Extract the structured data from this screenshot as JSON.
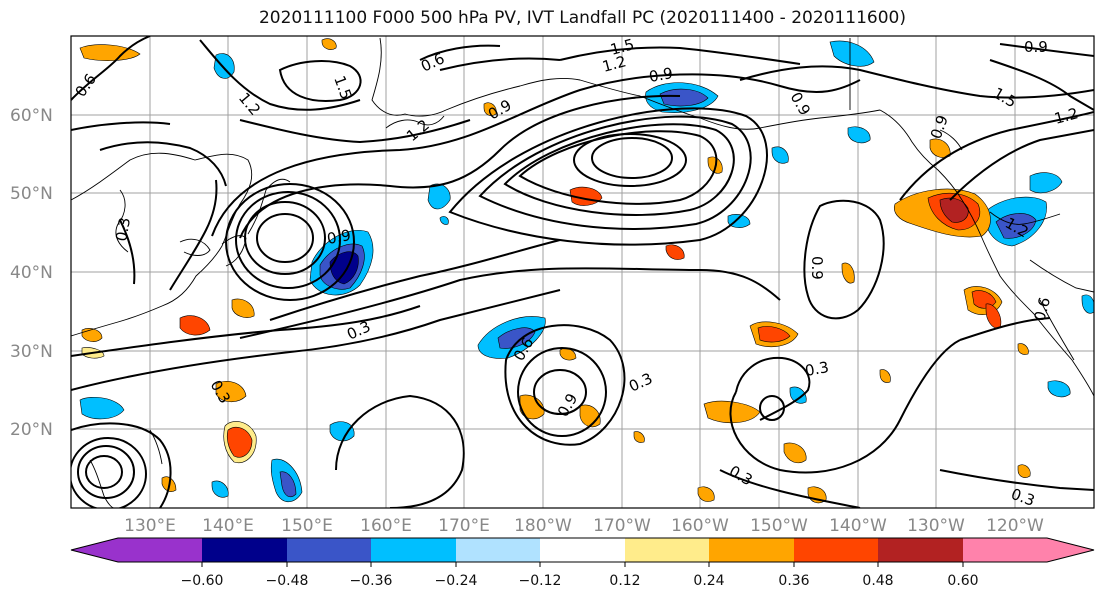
{
  "title": "2020111100 F000 500 hPa PV, IVT Landfall PC (2020111400 - 2020111600)",
  "map": {
    "lat_ticks": [
      "60°N",
      "50°N",
      "40°N",
      "30°N",
      "20°N"
    ],
    "lon_ticks": [
      "130°E",
      "140°E",
      "150°E",
      "160°E",
      "170°E",
      "180°W",
      "170°W",
      "160°W",
      "150°W",
      "140°W",
      "130°W",
      "120°W"
    ],
    "contour_labels": [
      {
        "text": "0.6",
        "name": "pv-label-06-nw"
      },
      {
        "text": "1.2",
        "name": "pv-label-12-west"
      },
      {
        "text": "1.5",
        "name": "pv-label-15-west"
      },
      {
        "text": "0.6",
        "name": "pv-label-06-north"
      },
      {
        "text": "1.5",
        "name": "pv-label-15-north"
      },
      {
        "text": "1.2",
        "name": "pv-label-12-north"
      },
      {
        "text": "0.9",
        "name": "pv-label-09-north"
      },
      {
        "text": "1.2",
        "name": "pv-label-12-central"
      },
      {
        "text": "0.9",
        "name": "pv-label-09-central"
      },
      {
        "text": "0.9",
        "name": "pv-label-09-ne"
      },
      {
        "text": "0.9",
        "name": "pv-label-09-east"
      },
      {
        "text": "1.5",
        "name": "pv-label-15-east"
      },
      {
        "text": "1.2",
        "name": "pv-label-12-east"
      },
      {
        "text": "0.9",
        "name": "pv-label-09-gulf"
      },
      {
        "text": "0.3",
        "name": "pv-label-03-west"
      },
      {
        "text": "0.9",
        "name": "pv-label-09-low"
      },
      {
        "text": "0.3",
        "name": "pv-label-03-mid"
      },
      {
        "text": "0.6",
        "name": "pv-label-06-south"
      },
      {
        "text": "0.9",
        "name": "pv-label-09-south"
      },
      {
        "text": "0.3",
        "name": "pv-label-03-south"
      },
      {
        "text": "0.3",
        "name": "pv-label-03-sw"
      },
      {
        "text": "0.3",
        "name": "pv-label-03-east"
      },
      {
        "text": "0.3",
        "name": "pv-label-03-se"
      },
      {
        "text": "0.3",
        "name": "pv-label-03-bottom"
      },
      {
        "text": "0.9",
        "name": "pv-label-09-se"
      },
      {
        "text": "0.6",
        "name": "pv-label-06-east"
      },
      {
        "text": "1.2",
        "name": "pv-label-12-coast"
      }
    ]
  },
  "colorbar": {
    "ticks": [
      "−0.60",
      "−0.48",
      "−0.36",
      "−0.24",
      "−0.12",
      "0.12",
      "0.24",
      "0.36",
      "0.48",
      "0.60"
    ],
    "colors": [
      "#9932cc",
      "#00008b",
      "#3a55c8",
      "#00bfff",
      "#b0e2ff",
      "#ffffff",
      "#ffec8b",
      "#ffa500",
      "#ff4500",
      "#b22222",
      "#ff82ab"
    ]
  }
}
